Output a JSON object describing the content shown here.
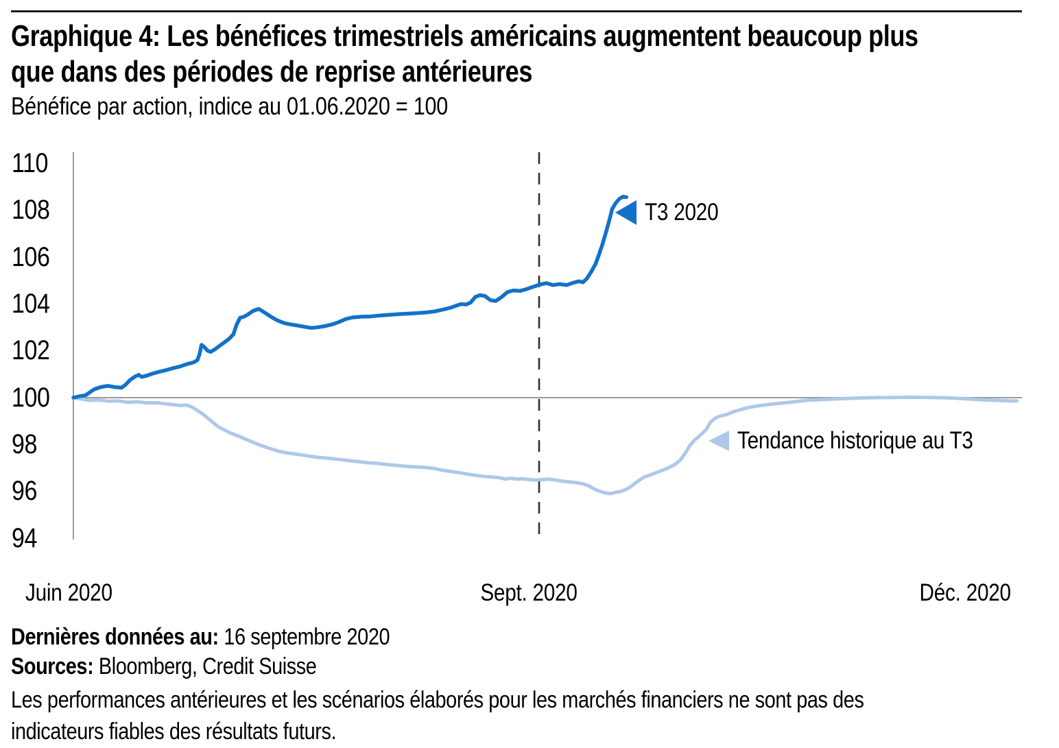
{
  "header": {
    "title_lines": [
      "Graphique 4: Les bénéfices trimestriels américains augmentent beaucoup plus",
      "que dans des périodes de reprise antérieures"
    ],
    "subtitle": "Bénéfice par action, indice au 01.06.2020 = 100"
  },
  "chart_data": {
    "type": "line",
    "title": "Graphique 4: Les bénéfices trimestriels américains augmentent beaucoup plus que dans des périodes de reprise antérieures",
    "subtitle": "Bénéfice par action, indice au 01.06.2020 = 100",
    "x_axis": {
      "unit": "jours depuis le 01.06.2020",
      "range_days": [
        0,
        187.3
      ],
      "ticks": [
        {
          "label": "Juin 2020",
          "day": 0
        },
        {
          "label": "Sept. 2020",
          "day": 92
        },
        {
          "label": "Déc. 2020",
          "day": 183
        }
      ],
      "divider_day": 92
    },
    "y_axis": {
      "range": [
        94,
        110
      ],
      "tick_step": 2,
      "ticks": [
        "110",
        "108",
        "106",
        "104",
        "102",
        "100",
        "98",
        "96",
        "94"
      ],
      "baseline": 100
    },
    "grid": "horizontal line at 100 only; vertical dashed divider at Sept. 2020",
    "legend": "inline arrow annotations",
    "series": [
      {
        "name": "T3 2020",
        "color": "#1471c9",
        "points": [
          [
            0,
            100.0
          ],
          [
            1.1,
            100.05
          ],
          [
            2.4,
            100.1
          ],
          [
            4.1,
            100.35
          ],
          [
            5.4,
            100.45
          ],
          [
            6.8,
            100.5
          ],
          [
            8.1,
            100.45
          ],
          [
            9.5,
            100.42
          ],
          [
            10.3,
            100.55
          ],
          [
            11.2,
            100.75
          ],
          [
            12.2,
            100.9
          ],
          [
            12.9,
            100.97
          ],
          [
            13.5,
            100.88
          ],
          [
            14.4,
            100.93
          ],
          [
            15.6,
            101.02
          ],
          [
            16.9,
            101.1
          ],
          [
            18.3,
            101.17
          ],
          [
            19.6,
            101.25
          ],
          [
            21,
            101.32
          ],
          [
            22.3,
            101.42
          ],
          [
            23.7,
            101.5
          ],
          [
            24.5,
            101.6
          ],
          [
            24.9,
            101.85
          ],
          [
            25.3,
            102.25
          ],
          [
            25.9,
            102.15
          ],
          [
            26.5,
            102.0
          ],
          [
            27.1,
            101.95
          ],
          [
            27.9,
            102.05
          ],
          [
            28.8,
            102.2
          ],
          [
            29.8,
            102.35
          ],
          [
            30.7,
            102.5
          ],
          [
            31.6,
            102.7
          ],
          [
            32.2,
            103.1
          ],
          [
            32.9,
            103.4
          ],
          [
            33.7,
            103.45
          ],
          [
            34.5,
            103.55
          ],
          [
            35.5,
            103.7
          ],
          [
            36.6,
            103.78
          ],
          [
            37.8,
            103.62
          ],
          [
            39,
            103.45
          ],
          [
            40.2,
            103.3
          ],
          [
            41.6,
            103.18
          ],
          [
            42.9,
            103.12
          ],
          [
            44.3,
            103.07
          ],
          [
            45.6,
            103.02
          ],
          [
            47,
            102.97
          ],
          [
            48.3,
            103.0
          ],
          [
            49.7,
            103.05
          ],
          [
            51.1,
            103.12
          ],
          [
            52.4,
            103.22
          ],
          [
            53.8,
            103.35
          ],
          [
            55.1,
            103.42
          ],
          [
            56.9,
            103.45
          ],
          [
            58.6,
            103.46
          ],
          [
            60.4,
            103.5
          ],
          [
            62.2,
            103.53
          ],
          [
            64.1,
            103.56
          ],
          [
            66,
            103.58
          ],
          [
            67.8,
            103.6
          ],
          [
            69.6,
            103.63
          ],
          [
            71.4,
            103.68
          ],
          [
            73.1,
            103.76
          ],
          [
            74.6,
            103.84
          ],
          [
            75.7,
            103.93
          ],
          [
            76.6,
            103.99
          ],
          [
            77.5,
            103.97
          ],
          [
            78.4,
            104.05
          ],
          [
            79.4,
            104.3
          ],
          [
            80.3,
            104.37
          ],
          [
            81.3,
            104.33
          ],
          [
            82.3,
            104.16
          ],
          [
            83.4,
            104.12
          ],
          [
            84.5,
            104.28
          ],
          [
            85.7,
            104.5
          ],
          [
            86.9,
            104.57
          ],
          [
            88.2,
            104.55
          ],
          [
            89.5,
            104.63
          ],
          [
            90.7,
            104.72
          ],
          [
            92.1,
            104.82
          ],
          [
            93.4,
            104.88
          ],
          [
            94.7,
            104.8
          ],
          [
            96,
            104.84
          ],
          [
            97.4,
            104.8
          ],
          [
            98.7,
            104.9
          ],
          [
            99.8,
            104.96
          ],
          [
            100.6,
            104.92
          ],
          [
            101.4,
            105.08
          ],
          [
            102.2,
            105.35
          ],
          [
            103.1,
            105.7
          ],
          [
            103.7,
            106.05
          ],
          [
            104.4,
            106.5
          ],
          [
            105.1,
            107.0
          ],
          [
            105.8,
            107.55
          ],
          [
            106.4,
            108.05
          ],
          [
            107.1,
            108.3
          ],
          [
            107.8,
            108.48
          ],
          [
            108.5,
            108.57
          ],
          [
            109.2,
            108.55
          ]
        ]
      },
      {
        "name": "Tendance historique au T3",
        "color": "#aec8e9",
        "points": [
          [
            0,
            100.0
          ],
          [
            1.5,
            99.94
          ],
          [
            3.1,
            99.88
          ],
          [
            5.1,
            99.9
          ],
          [
            6.9,
            99.84
          ],
          [
            8.8,
            99.86
          ],
          [
            10.7,
            99.8
          ],
          [
            12.6,
            99.82
          ],
          [
            14.5,
            99.77
          ],
          [
            16.4,
            99.78
          ],
          [
            18,
            99.74
          ],
          [
            19.6,
            99.7
          ],
          [
            21.1,
            99.66
          ],
          [
            22.3,
            99.68
          ],
          [
            23.4,
            99.6
          ],
          [
            24.5,
            99.45
          ],
          [
            25.5,
            99.3
          ],
          [
            26.4,
            99.15
          ],
          [
            27.5,
            98.95
          ],
          [
            28.6,
            98.75
          ],
          [
            29.7,
            98.63
          ],
          [
            30.9,
            98.5
          ],
          [
            32.1,
            98.4
          ],
          [
            33.4,
            98.28
          ],
          [
            34.8,
            98.15
          ],
          [
            36.2,
            98.03
          ],
          [
            37.5,
            97.92
          ],
          [
            38.9,
            97.82
          ],
          [
            40.4,
            97.72
          ],
          [
            41.8,
            97.65
          ],
          [
            43.5,
            97.6
          ],
          [
            45.1,
            97.55
          ],
          [
            46.7,
            97.5
          ],
          [
            48.3,
            97.45
          ],
          [
            50,
            97.42
          ],
          [
            51.6,
            97.38
          ],
          [
            53.2,
            97.34
          ],
          [
            54.8,
            97.3
          ],
          [
            56.5,
            97.26
          ],
          [
            58.1,
            97.22
          ],
          [
            59.7,
            97.2
          ],
          [
            61.3,
            97.16
          ],
          [
            63,
            97.12
          ],
          [
            64.6,
            97.09
          ],
          [
            66.2,
            97.06
          ],
          [
            67.8,
            97.04
          ],
          [
            69.5,
            97.02
          ],
          [
            71.1,
            96.98
          ],
          [
            72.9,
            96.9
          ],
          [
            74.5,
            96.85
          ],
          [
            76.1,
            96.8
          ],
          [
            77.7,
            96.74
          ],
          [
            79.4,
            96.68
          ],
          [
            81,
            96.64
          ],
          [
            82.6,
            96.61
          ],
          [
            84.2,
            96.58
          ],
          [
            85.3,
            96.52
          ],
          [
            86.4,
            96.56
          ],
          [
            87.5,
            96.52
          ],
          [
            88.7,
            96.54
          ],
          [
            90,
            96.5
          ],
          [
            91.3,
            96.48
          ],
          [
            92.5,
            96.5
          ],
          [
            93.8,
            96.52
          ],
          [
            95.2,
            96.48
          ],
          [
            96.6,
            96.43
          ],
          [
            97.9,
            96.4
          ],
          [
            99.3,
            96.37
          ],
          [
            100.6,
            96.32
          ],
          [
            101.7,
            96.24
          ],
          [
            102.8,
            96.1
          ],
          [
            103.9,
            96.0
          ],
          [
            104.9,
            95.94
          ],
          [
            106,
            95.9
          ],
          [
            107.1,
            95.96
          ],
          [
            108.2,
            96.0
          ],
          [
            109.3,
            96.1
          ],
          [
            110.2,
            96.22
          ],
          [
            111,
            96.36
          ],
          [
            111.9,
            96.5
          ],
          [
            112.8,
            96.62
          ],
          [
            113.9,
            96.7
          ],
          [
            115.1,
            96.8
          ],
          [
            116.3,
            96.9
          ],
          [
            117.5,
            97.0
          ],
          [
            118.8,
            97.15
          ],
          [
            119.9,
            97.35
          ],
          [
            120.9,
            97.65
          ],
          [
            121.7,
            97.95
          ],
          [
            122.6,
            98.18
          ],
          [
            123.4,
            98.32
          ],
          [
            124.2,
            98.48
          ],
          [
            125,
            98.65
          ],
          [
            125.8,
            98.95
          ],
          [
            126.5,
            99.08
          ],
          [
            127.2,
            99.17
          ],
          [
            128.1,
            99.23
          ],
          [
            129.1,
            99.28
          ],
          [
            130.1,
            99.38
          ],
          [
            131.5,
            99.47
          ],
          [
            133.1,
            99.57
          ],
          [
            134.7,
            99.63
          ],
          [
            136.4,
            99.68
          ],
          [
            138,
            99.72
          ],
          [
            139.6,
            99.76
          ],
          [
            141.5,
            99.8
          ],
          [
            143.4,
            99.85
          ],
          [
            145.3,
            99.89
          ],
          [
            147.3,
            99.91
          ],
          [
            149.4,
            99.93
          ],
          [
            151.5,
            99.95
          ],
          [
            153.8,
            99.97
          ],
          [
            156.4,
            99.99
          ],
          [
            159.1,
            100.0
          ],
          [
            161.8,
            100.0
          ],
          [
            164.5,
            100.01
          ],
          [
            167.2,
            100.01
          ],
          [
            169.9,
            100.0
          ],
          [
            172.7,
            99.99
          ],
          [
            175.4,
            99.96
          ],
          [
            178.1,
            99.92
          ],
          [
            180.8,
            99.89
          ],
          [
            183.2,
            99.87
          ],
          [
            185.2,
            99.86
          ],
          [
            186.3,
            99.86
          ]
        ]
      }
    ],
    "annotations": [
      {
        "label": "T3 2020",
        "arrow": "left-triangle",
        "color": "#1471c9",
        "points_at_value": 108.5
      },
      {
        "label": "Tendance historique au T3",
        "arrow": "left-triangle",
        "color": "#aec8e9",
        "points_at_value": 98.2
      }
    ]
  },
  "colors": {
    "series_dark": "#1471c9",
    "series_light": "#aec8e9",
    "axis": "#9a9a9a",
    "divider": "#2e2e2e",
    "rule": "#1a1a1a"
  },
  "footer": {
    "latest_label": "Dernières données au:",
    "latest_value": "16 septembre 2020",
    "sources_label": "Sources:",
    "sources_value": "Bloomberg, Credit Suisse",
    "disclaimer_lines": [
      "Les performances antérieures et les scénarios élaborés pour les marchés financiers ne sont pas des",
      "indicateurs fiables des résultats futurs."
    ]
  }
}
